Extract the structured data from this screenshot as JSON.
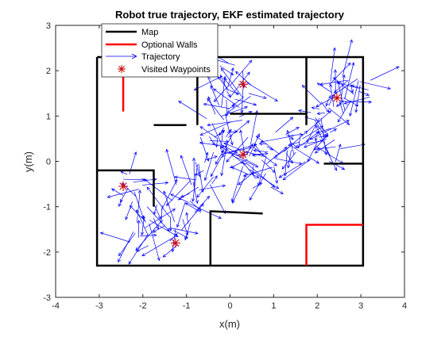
{
  "chart_data": {
    "type": "line",
    "title": "Robot true trajectory, EKF estimated trajectory",
    "xlabel": "x(m)",
    "ylabel": "y(m)",
    "xlim": [
      -4,
      4
    ],
    "ylim": [
      -3,
      3
    ],
    "xticks": [
      "-4",
      "-3",
      "-2",
      "-1",
      "0",
      "1",
      "2",
      "3",
      "4"
    ],
    "yticks": [
      "-3",
      "-2",
      "-1",
      "0",
      "1",
      "2",
      "3"
    ],
    "grid": false,
    "legend_position": "top-left",
    "legend": [
      {
        "label": "Map",
        "color": "#000000",
        "kind": "line"
      },
      {
        "label": "Optional Walls",
        "color": "#ff0000",
        "kind": "line"
      },
      {
        "label": "Trajectory",
        "color": "#0000ff",
        "kind": "arrow"
      },
      {
        "label": "Visited Waypoints",
        "color": "#cc0000",
        "kind": "star"
      }
    ],
    "map_walls": [
      [
        [
          -3.05,
          2.3
        ],
        [
          -3.05,
          -2.3
        ],
        [
          3.05,
          -2.3
        ],
        [
          3.05,
          2.3
        ],
        [
          -3.05,
          2.3
        ]
      ],
      [
        [
          -3.05,
          -0.2
        ],
        [
          -1.75,
          -0.2
        ],
        [
          -1.75,
          -1.0
        ]
      ],
      [
        [
          -1.75,
          0.8
        ],
        [
          -1.0,
          0.8
        ],
        [
          -1.0,
          0.8
        ]
      ],
      [
        [
          -0.75,
          2.3
        ],
        [
          -0.75,
          0.8
        ]
      ],
      [
        [
          0.0,
          1.05
        ],
        [
          1.75,
          1.05
        ],
        [
          1.75,
          0.8
        ]
      ],
      [
        [
          1.75,
          2.3
        ],
        [
          1.75,
          1.05
        ]
      ],
      [
        [
          2.15,
          -0.05
        ],
        [
          3.05,
          -0.05
        ]
      ],
      [
        [
          -0.45,
          -2.3
        ],
        [
          -0.45,
          -1.1
        ],
        [
          0.75,
          -1.15
        ]
      ]
    ],
    "optional_walls": [
      [
        [
          -2.45,
          1.9
        ],
        [
          -2.45,
          1.1
        ]
      ],
      [
        [
          1.75,
          -2.3
        ],
        [
          1.75,
          -1.4
        ],
        [
          3.05,
          -1.4
        ]
      ]
    ],
    "waypoints": [
      [
        0.3,
        1.7
      ],
      [
        2.45,
        1.4
      ],
      [
        0.3,
        0.15
      ],
      [
        -2.45,
        -0.55
      ],
      [
        -1.25,
        -1.8
      ]
    ],
    "trajectory_cluster_centers": [
      [
        -1.7,
        -1.2
      ],
      [
        -2.3,
        -0.6
      ],
      [
        -2.0,
        -1.6
      ],
      [
        -1.1,
        -1.5
      ],
      [
        -1.0,
        -0.8
      ],
      [
        -0.6,
        -0.3
      ],
      [
        -0.4,
        0.2
      ],
      [
        -0.2,
        0.7
      ],
      [
        0.0,
        1.2
      ],
      [
        0.15,
        1.7
      ],
      [
        -0.1,
        1.9
      ],
      [
        0.2,
        0.3
      ],
      [
        0.5,
        0.0
      ],
      [
        0.7,
        -0.3
      ],
      [
        1.2,
        0.4
      ],
      [
        1.6,
        0.3
      ],
      [
        2.0,
        0.8
      ],
      [
        2.3,
        1.2
      ],
      [
        2.6,
        1.5
      ],
      [
        2.9,
        1.7
      ],
      [
        2.3,
        0.3
      ]
    ]
  }
}
